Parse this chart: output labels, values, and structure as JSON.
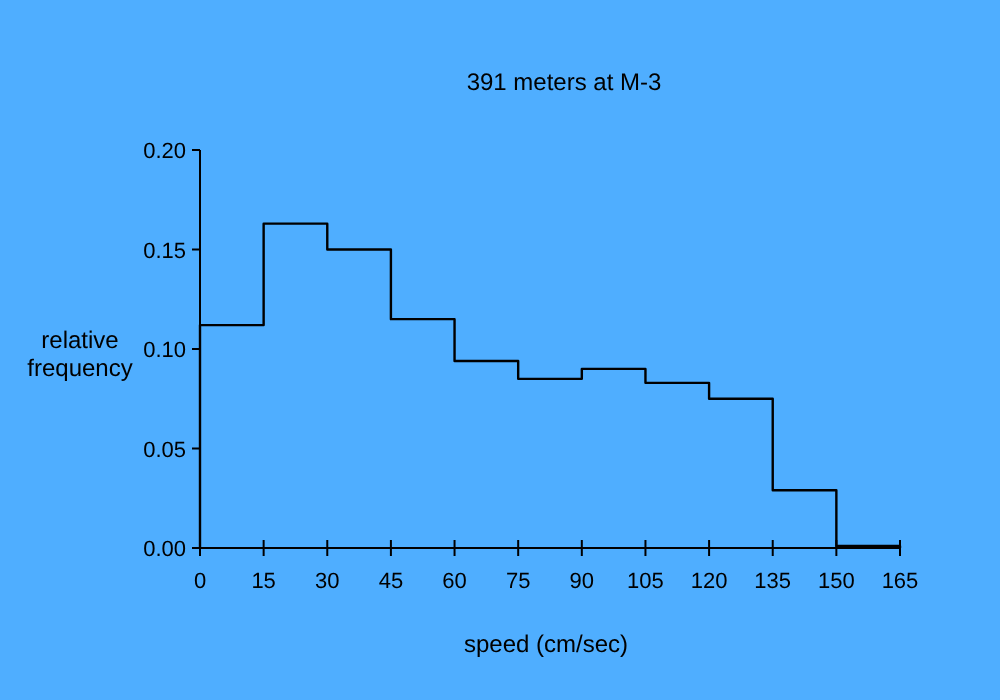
{
  "chart_data": {
    "type": "histogram",
    "title": "391 meters at M-3",
    "xlabel": "speed (cm/sec)",
    "ylabel": "relative frequency",
    "bins": [
      0,
      15,
      30,
      45,
      60,
      75,
      90,
      105,
      120,
      135,
      150,
      165
    ],
    "values": [
      0.112,
      0.163,
      0.15,
      0.115,
      0.094,
      0.085,
      0.09,
      0.083,
      0.075,
      0.029,
      0.001
    ],
    "color": "#000000",
    "xlim": [
      0,
      165
    ],
    "xticks": [
      0,
      15,
      30,
      45,
      60,
      75,
      90,
      105,
      120,
      135,
      150,
      165
    ],
    "ylim": [
      0,
      0.2
    ],
    "yticks": [
      {
        "value": 0,
        "label": "0.00"
      },
      {
        "value": 0.05,
        "label": "0.05"
      },
      {
        "value": 0.1,
        "label": "0.10"
      },
      {
        "value": 0.15,
        "label": "0.15"
      },
      {
        "value": 0.2,
        "label": "0.20"
      }
    ],
    "grid": false
  }
}
